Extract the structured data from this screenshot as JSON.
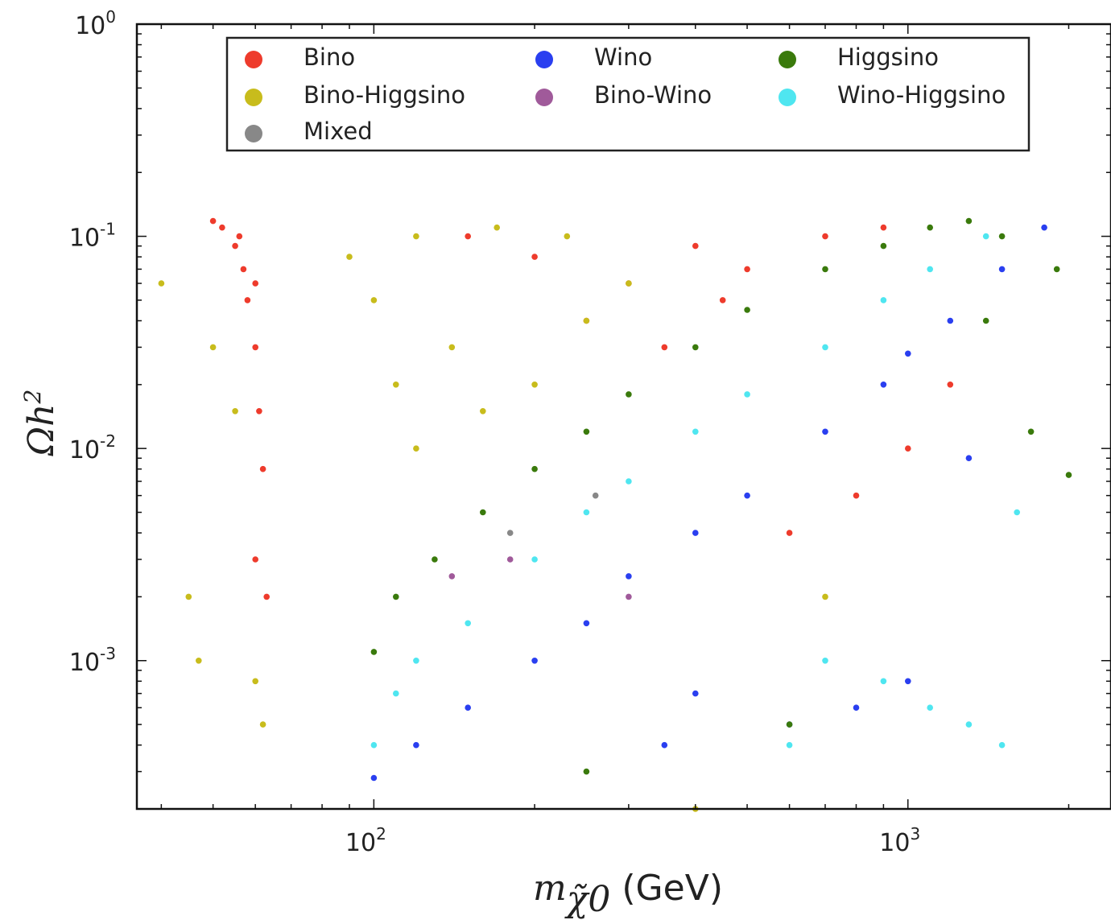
{
  "chart_data": {
    "type": "scatter",
    "title": "",
    "xlabel": {
      "symbol": "m",
      "sub": "χ̃0",
      "unit": "(GeV)"
    },
    "ylabel": {
      "main": "Ωh",
      "sup": "2"
    },
    "xscale": "log",
    "yscale": "log",
    "xlim": [
      36,
      2400
    ],
    "ylim": [
      0.0002,
      1
    ],
    "x_ticks": [
      {
        "value": 100,
        "base": "10",
        "exp": "2"
      },
      {
        "value": 1000,
        "base": "10",
        "exp": "3"
      }
    ],
    "y_ticks": [
      {
        "value": 0.001,
        "base": "10",
        "exp": "-3"
      },
      {
        "value": 0.01,
        "base": "10",
        "exp": "-2"
      },
      {
        "value": 0.1,
        "base": "10",
        "exp": "-1"
      },
      {
        "value": 1,
        "base": "10",
        "exp": "0"
      }
    ],
    "grid": false,
    "legend_position": "top",
    "series": [
      {
        "name": "Bino",
        "color": "#ee3b2c",
        "points": [
          [
            50,
            0.118
          ],
          [
            52,
            0.11
          ],
          [
            55,
            0.09
          ],
          [
            57,
            0.07
          ],
          [
            58,
            0.05
          ],
          [
            60,
            0.03
          ],
          [
            61,
            0.015
          ],
          [
            62,
            0.008
          ],
          [
            60,
            0.003
          ],
          [
            63,
            0.002
          ],
          [
            60,
            0.06
          ],
          [
            56,
            0.1
          ],
          [
            150,
            0.1
          ],
          [
            200,
            0.08
          ],
          [
            300,
            0.06
          ],
          [
            400,
            0.09
          ],
          [
            500,
            0.07
          ],
          [
            700,
            0.1
          ],
          [
            900,
            0.11
          ],
          [
            250,
            0.04
          ],
          [
            350,
            0.03
          ],
          [
            450,
            0.05
          ],
          [
            600,
            0.004
          ],
          [
            800,
            0.006
          ],
          [
            1000,
            0.01
          ],
          [
            1200,
            0.02
          ]
        ]
      },
      {
        "name": "Wino",
        "color": "#2a3ff0",
        "points": [
          [
            100,
            0.00028
          ],
          [
            120,
            0.0004
          ],
          [
            150,
            0.0006
          ],
          [
            200,
            0.001
          ],
          [
            250,
            0.0015
          ],
          [
            300,
            0.0025
          ],
          [
            400,
            0.004
          ],
          [
            500,
            0.006
          ],
          [
            700,
            0.012
          ],
          [
            900,
            0.02
          ],
          [
            1000,
            0.028
          ],
          [
            1200,
            0.04
          ],
          [
            1500,
            0.07
          ],
          [
            1800,
            0.11
          ],
          [
            1000,
            0.0008
          ],
          [
            800,
            0.0006
          ],
          [
            600,
            0.0005
          ],
          [
            400,
            0.0007
          ],
          [
            350,
            0.0004
          ],
          [
            1300,
            0.009
          ]
        ]
      },
      {
        "name": "Higgsino",
        "color": "#3a7a0c",
        "points": [
          [
            100,
            0.0011
          ],
          [
            110,
            0.002
          ],
          [
            130,
            0.003
          ],
          [
            160,
            0.005
          ],
          [
            200,
            0.008
          ],
          [
            250,
            0.012
          ],
          [
            300,
            0.018
          ],
          [
            400,
            0.03
          ],
          [
            500,
            0.045
          ],
          [
            700,
            0.07
          ],
          [
            900,
            0.09
          ],
          [
            1100,
            0.11
          ],
          [
            1300,
            0.118
          ],
          [
            1500,
            0.1
          ],
          [
            1900,
            0.07
          ],
          [
            1400,
            0.04
          ],
          [
            1700,
            0.012
          ],
          [
            2000,
            0.0075
          ],
          [
            600,
            0.0005
          ],
          [
            250,
            0.0003
          ]
        ]
      },
      {
        "name": "Bino-Higgsino",
        "color": "#c8bc1c",
        "points": [
          [
            40,
            0.06
          ],
          [
            45,
            0.002
          ],
          [
            47,
            0.001
          ],
          [
            50,
            0.03
          ],
          [
            55,
            0.015
          ],
          [
            60,
            0.0008
          ],
          [
            62,
            0.0005
          ],
          [
            90,
            0.08
          ],
          [
            100,
            0.05
          ],
          [
            110,
            0.02
          ],
          [
            120,
            0.01
          ],
          [
            140,
            0.03
          ],
          [
            160,
            0.015
          ],
          [
            200,
            0.02
          ],
          [
            250,
            0.04
          ],
          [
            300,
            0.06
          ],
          [
            120,
            0.1
          ],
          [
            170,
            0.11
          ],
          [
            230,
            0.1
          ],
          [
            400,
            0.0002
          ],
          [
            700,
            0.002
          ]
        ]
      },
      {
        "name": "Bino-Wino",
        "color": "#a05a9a",
        "points": [
          [
            140,
            0.0025
          ],
          [
            180,
            0.003
          ],
          [
            300,
            0.002
          ]
        ]
      },
      {
        "name": "Wino-Higgsino",
        "color": "#4fe6f0",
        "points": [
          [
            100,
            0.0004
          ],
          [
            110,
            0.0007
          ],
          [
            120,
            0.001
          ],
          [
            150,
            0.0015
          ],
          [
            200,
            0.003
          ],
          [
            250,
            0.005
          ],
          [
            300,
            0.007
          ],
          [
            400,
            0.012
          ],
          [
            500,
            0.018
          ],
          [
            700,
            0.03
          ],
          [
            900,
            0.05
          ],
          [
            1100,
            0.07
          ],
          [
            1400,
            0.1
          ],
          [
            1600,
            0.005
          ],
          [
            1500,
            0.0004
          ],
          [
            1300,
            0.0005
          ],
          [
            1100,
            0.0006
          ],
          [
            900,
            0.0008
          ],
          [
            700,
            0.001
          ],
          [
            600,
            0.0004
          ]
        ]
      },
      {
        "name": "Mixed",
        "color": "#888888",
        "points": [
          [
            180,
            0.004
          ],
          [
            260,
            0.006
          ]
        ]
      }
    ]
  }
}
